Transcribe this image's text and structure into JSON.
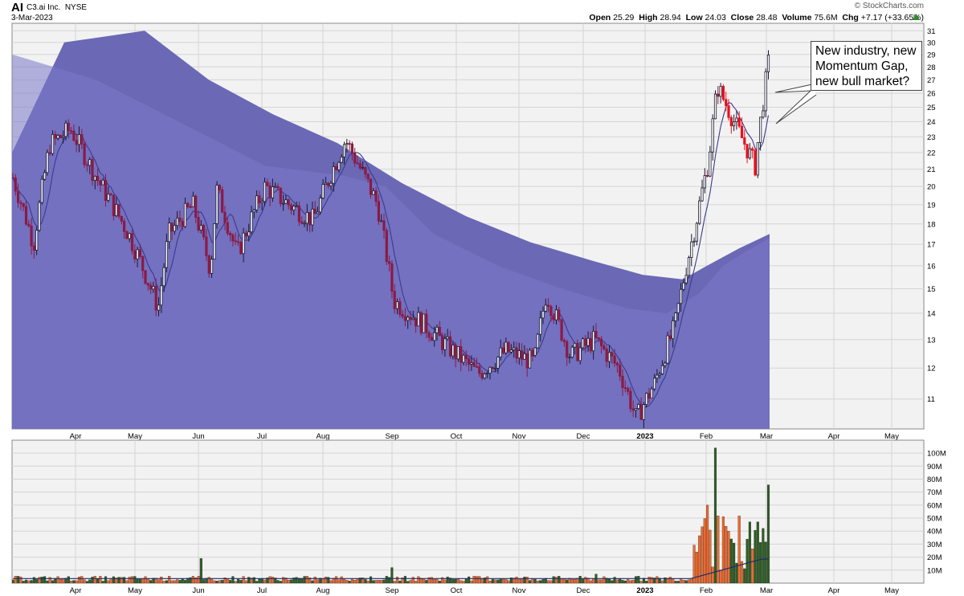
{
  "header": {
    "symbol": "AI",
    "company": "C3.ai Inc.",
    "exchange": "NYSE",
    "date": "3-Mar-2023",
    "brand": "© StockCharts.com",
    "open_label": "Open",
    "open": "25.29",
    "high_label": "High",
    "high": "28.94",
    "low_label": "Low",
    "low": "24.03",
    "close_label": "Close",
    "close": "28.48",
    "volume_label": "Volume",
    "volume": "75.6M",
    "chg_label": "Chg",
    "chg": "+7.17 (+33.65%)",
    "chg_icon": "up-triangle-icon"
  },
  "annotation": {
    "lines": [
      "New industry, new",
      "Momentum Gap,",
      "new bull market?"
    ]
  },
  "colors": {
    "up_candle": "#1a1a2e",
    "down_candle": "#8b1a44",
    "red_candle": "#e8101e",
    "ma_band_dark": "#6b68b5",
    "ma_band_light": "#7a78c8",
    "vol_up": "#2e5e24",
    "vol_down": "#f26a2d",
    "ma_line": "#3b3a8f"
  },
  "chart_data": [
    {
      "type": "candlestick",
      "ylim": [
        10,
        31
      ],
      "yscale": "log",
      "yticks": [
        "11",
        "12",
        "13",
        "14",
        "15",
        "16",
        "17",
        "18",
        "19",
        "20",
        "21",
        "22",
        "23",
        "24",
        "25",
        "26",
        "27",
        "28",
        "29",
        "30",
        "31"
      ],
      "xticks": [
        "Apr",
        "May",
        "Jun",
        "Jul",
        "Aug",
        "Sep",
        "Oct",
        "Nov",
        "Dec",
        "2023",
        "Feb",
        "Mar",
        "Apr",
        "May"
      ],
      "grid": true,
      "close_trace": [
        {
          "x": "Mar 2022 start",
          "y": 20.5
        },
        {
          "x": "Mar",
          "y": 17.0
        },
        {
          "x": "Mar late",
          "y": 22.5
        },
        {
          "x": "Apr",
          "y": 23.5
        },
        {
          "x": "Apr mid",
          "y": 20.5
        },
        {
          "x": "May",
          "y": 17.5
        },
        {
          "x": "May mid",
          "y": 14.2
        },
        {
          "x": "May late",
          "y": 17.5
        },
        {
          "x": "Jun",
          "y": 19.0
        },
        {
          "x": "Jun mid",
          "y": 15.8
        },
        {
          "x": "Jun late",
          "y": 19.8
        },
        {
          "x": "Jul",
          "y": 16.5
        },
        {
          "x": "Jul mid",
          "y": 20.0
        },
        {
          "x": "Jul late",
          "y": 19.0
        },
        {
          "x": "Aug",
          "y": 18.2
        },
        {
          "x": "Aug mid",
          "y": 22.8
        },
        {
          "x": "Aug late",
          "y": 19.0
        },
        {
          "x": "Sep",
          "y": 14.5
        },
        {
          "x": "Sep mid",
          "y": 13.5
        },
        {
          "x": "Sep late",
          "y": 12.8
        },
        {
          "x": "Oct",
          "y": 11.8
        },
        {
          "x": "Oct mid",
          "y": 12.6
        },
        {
          "x": "Nov",
          "y": 12.2
        },
        {
          "x": "Nov mid",
          "y": 14.8
        },
        {
          "x": "Nov late",
          "y": 12.4
        },
        {
          "x": "Dec",
          "y": 13.0
        },
        {
          "x": "Dec mid",
          "y": 12.0
        },
        {
          "x": "Dec late",
          "y": 10.4
        },
        {
          "x": "2023",
          "y": 11.5
        },
        {
          "x": "Jan mid",
          "y": 13.5
        },
        {
          "x": "Jan late",
          "y": 18.0
        },
        {
          "x": "Feb",
          "y": 21.5
        },
        {
          "x": "Feb early",
          "y": 26.5
        },
        {
          "x": "Feb mid",
          "y": 23.5
        },
        {
          "x": "Feb late",
          "y": 21.2
        },
        {
          "x": "Mar",
          "y": 28.48
        }
      ]
    },
    {
      "type": "bar",
      "ylim": [
        0,
        105
      ],
      "yticks": [
        "10M",
        "20M",
        "30M",
        "40M",
        "50M",
        "60M",
        "70M",
        "80M",
        "90M",
        "100M"
      ],
      "xticks": [
        "Apr",
        "May",
        "Jun",
        "Jul",
        "Aug",
        "Sep",
        "Oct",
        "Nov",
        "Dec",
        "2023",
        "Feb",
        "Mar",
        "Apr",
        "May"
      ],
      "spikes_millions": [
        {
          "x": "Jun",
          "v": 19
        },
        {
          "x": "Sep",
          "v": 12
        },
        {
          "x": "Dec",
          "v": 7
        },
        {
          "x": "Jan late",
          "v": 24
        },
        {
          "x": "Feb early",
          "v": 104
        },
        {
          "x": "Feb",
          "v": 60
        },
        {
          "x": "Feb mid",
          "v": 40
        },
        {
          "x": "Mar",
          "v": 75.6
        }
      ]
    }
  ]
}
